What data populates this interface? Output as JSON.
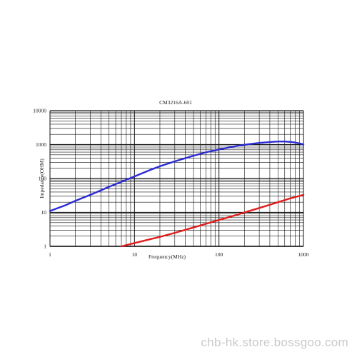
{
  "watermark": "chb-hk.store.bossgoo.com",
  "chart_data": {
    "type": "line",
    "title": "CM3216A-601",
    "xlabel": "Frequency(MHz)",
    "ylabel": "Impedance(OHM)",
    "xscale": "log",
    "yscale": "log",
    "xlim": [
      1,
      1000
    ],
    "ylim": [
      1,
      10000
    ],
    "grid": true,
    "x_ticks": [
      "1",
      "10",
      "100",
      "1000"
    ],
    "y_ticks": [
      "1",
      "10",
      "100",
      "1000",
      "10000"
    ],
    "colors": {
      "blue": "#2b2bd6",
      "red": "#e01c1c",
      "grid": "#111111"
    },
    "series": [
      {
        "color": "#2b2bd6",
        "x": [
          1,
          1.5,
          2,
          3,
          5,
          7,
          10,
          15,
          20,
          30,
          50,
          70,
          100,
          150,
          200,
          300,
          400,
          500,
          600,
          700,
          800,
          900,
          1000
        ],
        "y": [
          11,
          16,
          22,
          33,
          57,
          80,
          115,
          175,
          230,
          320,
          470,
          590,
          720,
          880,
          990,
          1120,
          1190,
          1230,
          1230,
          1200,
          1150,
          1080,
          1010
        ]
      },
      {
        "color": "#e01c1c",
        "x": [
          7,
          10,
          15,
          20,
          30,
          50,
          70,
          100,
          150,
          200,
          300,
          500,
          700,
          1000
        ],
        "y": [
          1.0,
          1.25,
          1.6,
          1.9,
          2.5,
          3.6,
          4.6,
          6.0,
          8.0,
          10.0,
          13.5,
          20,
          26,
          33
        ]
      }
    ]
  }
}
